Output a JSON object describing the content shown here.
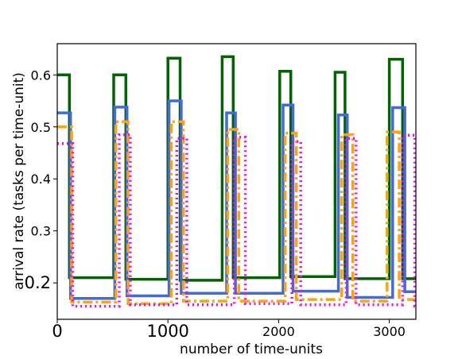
{
  "chart_data": {
    "type": "line",
    "title": "",
    "xlabel": "number of time-units",
    "ylabel": "arrival rate (tasks per time-unit)",
    "xlim": [
      0,
      3240
    ],
    "ylim": [
      0.13,
      0.66
    ],
    "grid": false,
    "legend": "none",
    "x_ticks": [
      {
        "value": 0,
        "label": "0",
        "size": "large"
      },
      {
        "value": 1000,
        "label": "1000",
        "size": "large"
      },
      {
        "value": 2000,
        "label": "2000",
        "size": "small"
      },
      {
        "value": 3000,
        "label": "3000",
        "size": "small"
      }
    ],
    "y_ticks": [
      {
        "value": 0.2,
        "label": "0.2",
        "size": "large"
      },
      {
        "value": 0.3,
        "label": "0.3",
        "size": "small"
      },
      {
        "value": 0.4,
        "label": "0.4",
        "size": "small"
      },
      {
        "value": 0.5,
        "label": "0.5",
        "size": "small"
      },
      {
        "value": 0.6,
        "label": "0.6",
        "size": "small"
      }
    ],
    "series": [
      {
        "color": "#006400",
        "style": "solid",
        "x": [
          0,
          110,
          110,
          510,
          510,
          620,
          620,
          1000,
          1000,
          1110,
          1110,
          1490,
          1490,
          1590,
          1590,
          2010,
          2010,
          2110,
          2110,
          2510,
          2510,
          2600,
          2600,
          3000,
          3000,
          3120,
          3120,
          3240
        ],
        "y": [
          0.6,
          0.6,
          0.21,
          0.21,
          0.6,
          0.6,
          0.207,
          0.207,
          0.632,
          0.632,
          0.205,
          0.205,
          0.635,
          0.635,
          0.21,
          0.21,
          0.607,
          0.607,
          0.212,
          0.212,
          0.605,
          0.605,
          0.208,
          0.208,
          0.63,
          0.63,
          0.208,
          0.208
        ]
      },
      {
        "color": "#4169E1",
        "style": "solid",
        "x": [
          0,
          120,
          120,
          520,
          520,
          630,
          630,
          1010,
          1010,
          1120,
          1120,
          1530,
          1530,
          1610,
          1610,
          2040,
          2040,
          2130,
          2130,
          2540,
          2540,
          2620,
          2620,
          3030,
          3030,
          3140,
          3140,
          3240
        ],
        "y": [
          0.527,
          0.527,
          0.17,
          0.17,
          0.538,
          0.538,
          0.175,
          0.175,
          0.55,
          0.55,
          0.18,
          0.18,
          0.527,
          0.527,
          0.18,
          0.18,
          0.542,
          0.542,
          0.184,
          0.184,
          0.523,
          0.523,
          0.172,
          0.172,
          0.537,
          0.537,
          0.183,
          0.183
        ]
      },
      {
        "color": "#FFA500",
        "style": "dashdot",
        "x": [
          0,
          130,
          130,
          530,
          530,
          640,
          640,
          1030,
          1030,
          1140,
          1140,
          1540,
          1540,
          1640,
          1640,
          2060,
          2060,
          2160,
          2160,
          2570,
          2570,
          2670,
          2670,
          2980,
          2980,
          3090,
          3090,
          3240
        ],
        "y": [
          0.5,
          0.5,
          0.163,
          0.163,
          0.51,
          0.51,
          0.16,
          0.16,
          0.51,
          0.51,
          0.165,
          0.165,
          0.495,
          0.495,
          0.165,
          0.165,
          0.488,
          0.488,
          0.168,
          0.168,
          0.485,
          0.485,
          0.165,
          0.165,
          0.49,
          0.49,
          0.168,
          0.168
        ]
      },
      {
        "color": "#FF00FF",
        "style": "dotted",
        "x": [
          0,
          140,
          140,
          560,
          560,
          660,
          660,
          1080,
          1080,
          1170,
          1170,
          1600,
          1600,
          1700,
          1700,
          2120,
          2120,
          2200,
          2200,
          2610,
          2610,
          2700,
          2700,
          3120,
          3120,
          3230,
          3230,
          3240
        ],
        "y": [
          0.468,
          0.468,
          0.155,
          0.155,
          0.485,
          0.485,
          0.158,
          0.158,
          0.478,
          0.478,
          0.158,
          0.158,
          0.48,
          0.48,
          0.16,
          0.16,
          0.472,
          0.472,
          0.158,
          0.158,
          0.478,
          0.478,
          0.158,
          0.158,
          0.484,
          0.484,
          0.155,
          0.155
        ]
      }
    ]
  }
}
